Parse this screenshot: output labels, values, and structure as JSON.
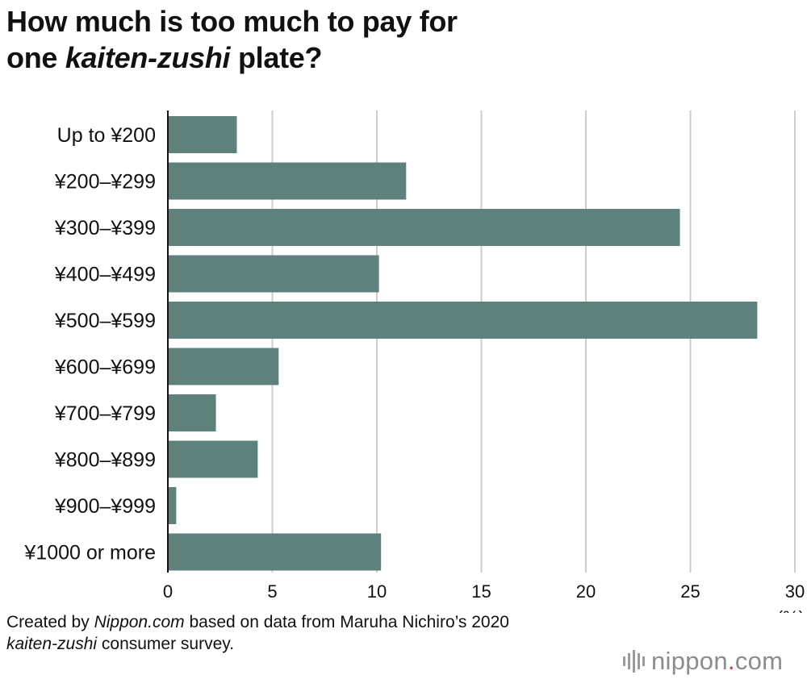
{
  "title": {
    "line1": "How much is too much to pay for",
    "line2_prefix": "one ",
    "line2_italic": "kaiten-zushi",
    "line2_suffix": " plate?"
  },
  "chart_data": {
    "type": "bar",
    "orientation": "horizontal",
    "categories": [
      "Up to ¥200",
      "¥200–¥299",
      "¥300–¥399",
      "¥400–¥499",
      "¥500–¥599",
      "¥600–¥699",
      "¥700–¥799",
      "¥800–¥899",
      "¥900–¥999",
      "¥1000 or more"
    ],
    "values": [
      3.3,
      11.4,
      24.5,
      10.1,
      28.2,
      5.3,
      2.3,
      4.3,
      0.4,
      10.2
    ],
    "xlim": [
      0,
      30
    ],
    "xticks": [
      0,
      5,
      10,
      15,
      20,
      25,
      30
    ],
    "xunit": "(%)",
    "grid": "vertical",
    "bar_color": "#5f817c",
    "grid_color": "#cccccc",
    "axis_color": "#111111"
  },
  "footer": {
    "line1_prefix": "Created by ",
    "line1_italic": "Nippon.com",
    "line1_suffix": " based on data from Maruha Nichiro’s 2020",
    "line2_italic": "kaiten-zushi",
    "line2_suffix": " consumer survey."
  },
  "logo": {
    "name": "nippon",
    "dot": ".",
    "tld": "com",
    "dot_color": "#d33a2c"
  }
}
